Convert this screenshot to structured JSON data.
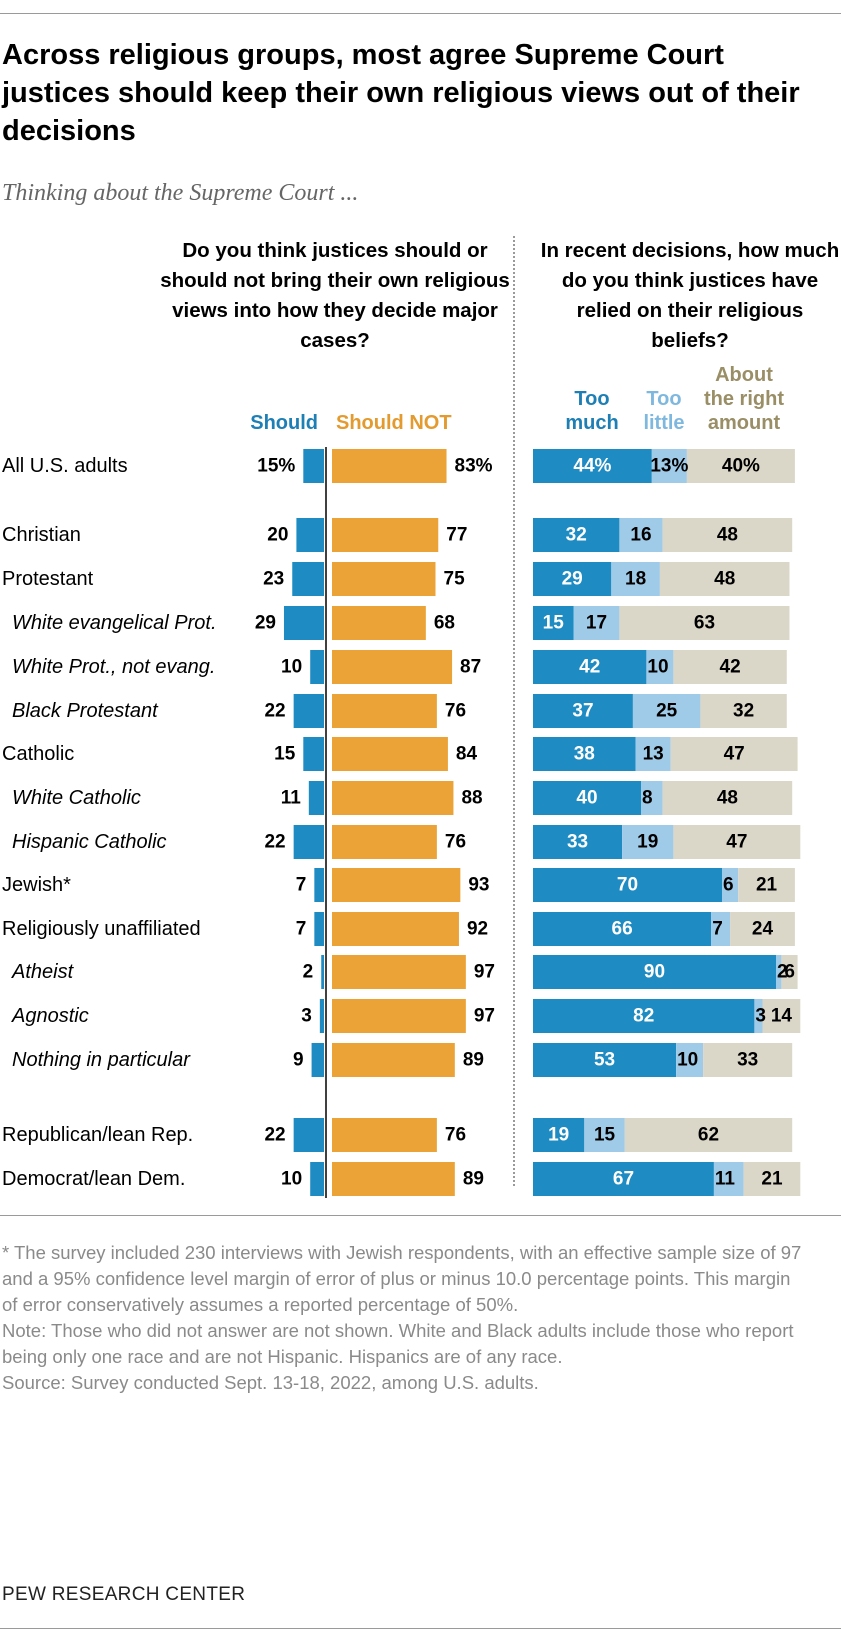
{
  "title": "Across religious groups, most agree Supreme Court justices should keep their own religious views out of their decisions",
  "subtitle": "Thinking about the Supreme Court ...",
  "question_left": "Do you think justices should or should not bring their own religious views into how they decide major cases?",
  "question_right": "In recent decisions, how much do you think justices have relied on their religious beliefs?",
  "legend": {
    "should": "Should",
    "should_not": "Should NOT",
    "too_much": "Too much",
    "too_little": "Too little",
    "right_amount": "About the right amount"
  },
  "colors": {
    "should": "#1e8bc3",
    "should_not": "#eba337",
    "too_much": "#1e8bc3",
    "too_little": "#9fcbe8",
    "right_amount": "#dbd7c8",
    "right_amount_label": "#998e65"
  },
  "chart_data": [
    {
      "type": "bar",
      "orientation": "horizontal",
      "diverging": true,
      "title": "Do you think justices should or should not bring their own religious views into how they decide major cases?",
      "categories": [
        "All U.S. adults",
        "Christian",
        "Protestant",
        "White evangelical Prot.",
        "White Prot., not evang.",
        "Black Protestant",
        "Catholic",
        "White Catholic",
        "Hispanic Catholic",
        "Jewish*",
        "Religiously unaffiliated",
        "Atheist",
        "Agnostic",
        "Nothing in particular",
        "Republican/lean Rep.",
        "Democrat/lean Dem."
      ],
      "series": [
        {
          "name": "Should",
          "values": [
            15,
            20,
            23,
            29,
            10,
            22,
            15,
            11,
            22,
            7,
            7,
            2,
            3,
            9,
            22,
            10
          ]
        },
        {
          "name": "Should NOT",
          "values": [
            83,
            77,
            75,
            68,
            87,
            76,
            84,
            88,
            76,
            93,
            92,
            97,
            97,
            89,
            76,
            89
          ]
        }
      ]
    },
    {
      "type": "bar",
      "orientation": "horizontal",
      "stacked": true,
      "title": "In recent decisions, how much do you think justices have relied on their religious beliefs?",
      "categories": [
        "All U.S. adults",
        "Christian",
        "Protestant",
        "White evangelical Prot.",
        "White Prot., not evang.",
        "Black Protestant",
        "Catholic",
        "White Catholic",
        "Hispanic Catholic",
        "Jewish*",
        "Religiously unaffiliated",
        "Atheist",
        "Agnostic",
        "Nothing in particular",
        "Republican/lean Rep.",
        "Democrat/lean Dem."
      ],
      "series": [
        {
          "name": "Too much",
          "values": [
            44,
            32,
            29,
            15,
            42,
            37,
            38,
            40,
            33,
            70,
            66,
            90,
            82,
            53,
            19,
            67
          ]
        },
        {
          "name": "Too little",
          "values": [
            13,
            16,
            18,
            17,
            10,
            25,
            13,
            8,
            19,
            6,
            7,
            2,
            3,
            10,
            15,
            11
          ]
        },
        {
          "name": "About the right amount",
          "values": [
            40,
            48,
            48,
            63,
            42,
            32,
            47,
            48,
            47,
            21,
            24,
            6,
            14,
            33,
            62,
            21
          ]
        }
      ]
    }
  ],
  "row_styles": [
    "plain",
    "plain",
    "plain",
    "italic",
    "italic",
    "italic",
    "plain",
    "italic",
    "italic",
    "plain",
    "plain",
    "italic",
    "italic",
    "italic",
    "plain",
    "plain"
  ],
  "first_row_suffix": "%",
  "notes": {
    "footnote": "* The survey included 230 interviews with Jewish respondents, with an effective sample size of 97 and a 95% confidence level margin of error of plus or minus 10.0 percentage points. This margin of error conservatively assumes a reported percentage of 50%.",
    "note": "Note: Those who did not answer are not shown. White and Black adults include those who report being only one race and are not Hispanic. Hispanics are of any race.",
    "source": "Source: Survey conducted Sept. 13-18, 2022, among U.S. adults."
  },
  "brand": "PEW RESEARCH CENTER"
}
